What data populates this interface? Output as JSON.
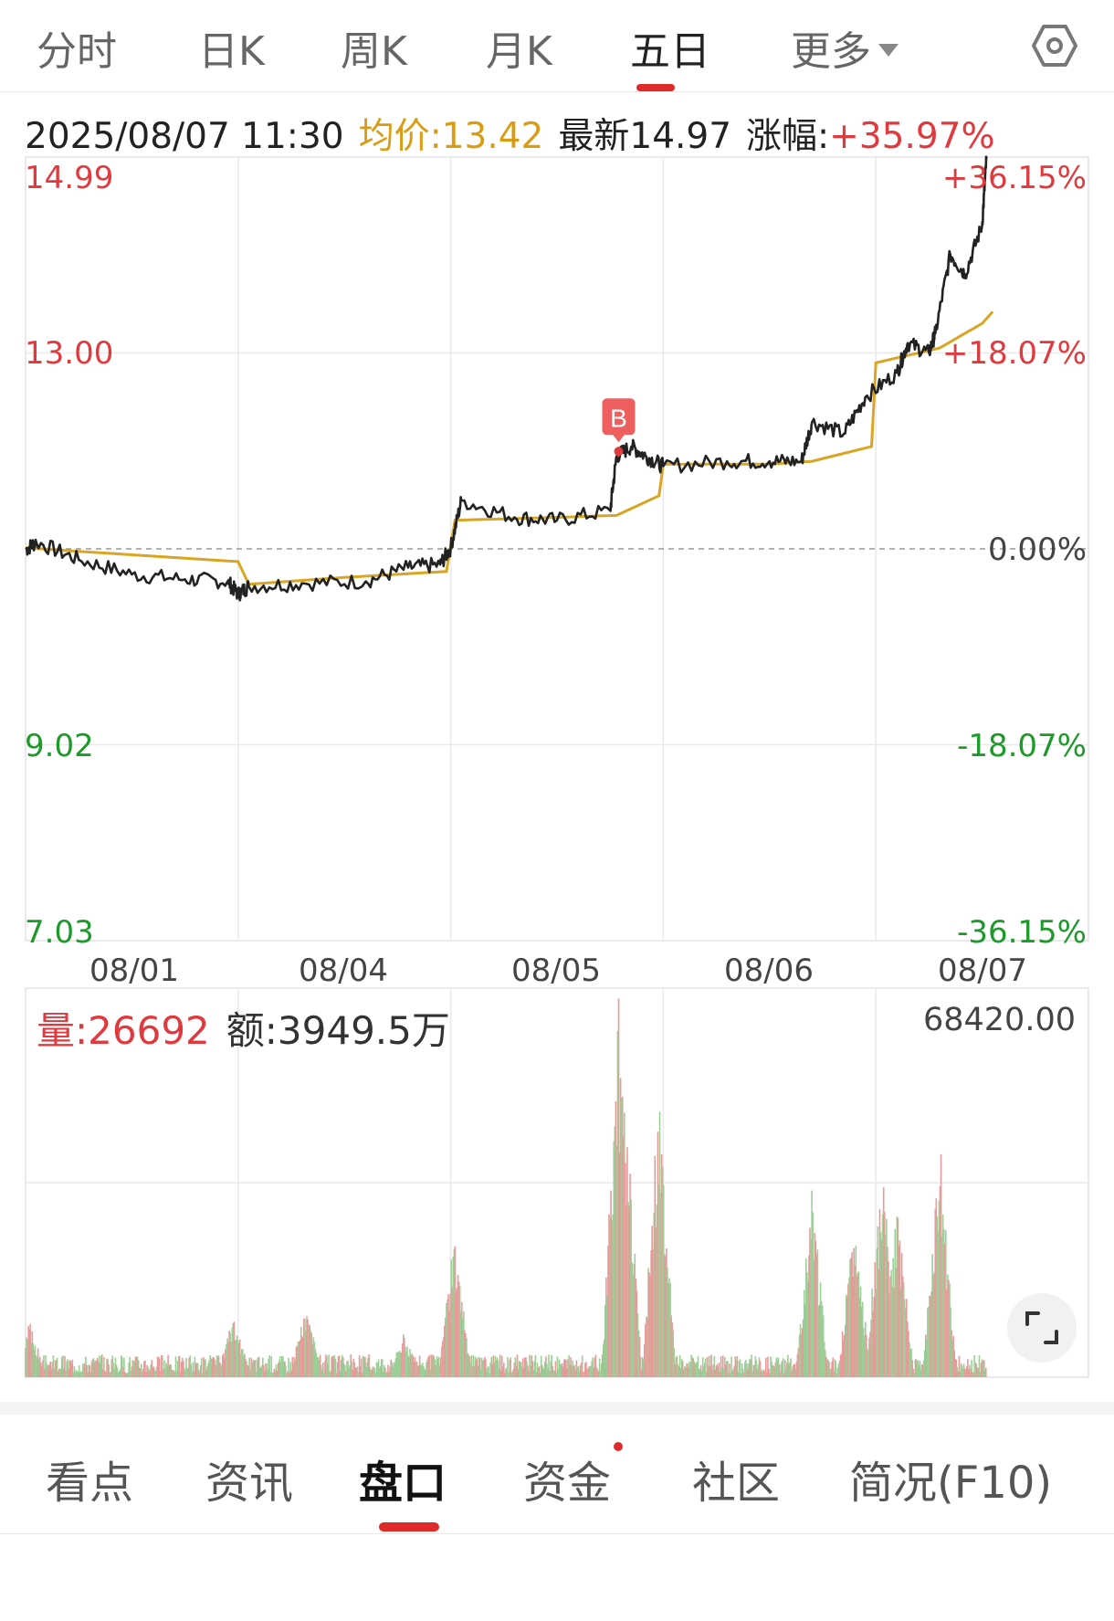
{
  "tabs": [
    "分时",
    "日K",
    "周K",
    "月K",
    "五日",
    "更多"
  ],
  "active_tab": "五日",
  "info": {
    "datetime": "2025/08/07 11:30",
    "avg": "均价:13.42",
    "latest": "最新14.97",
    "change_label": "涨幅:",
    "change_value": "+35.97%"
  },
  "marker_label": "B",
  "colors": {
    "up": "#e0393e",
    "down": "#1e9a2a",
    "avg_line": "#d9a523",
    "price_line": "#222222"
  },
  "volume": {
    "vol": "量:26692",
    "amount": "额:3949.5万",
    "max": "68420.00"
  },
  "bottom_tabs": [
    "看点",
    "资讯",
    "盘口",
    "资金",
    "社区",
    "简况(F10)"
  ],
  "active_bottom_tab": "盘口",
  "chart_data": {
    "type": "line",
    "title": "",
    "x_labels": [
      "08/01",
      "08/04",
      "08/05",
      "08/06",
      "08/07"
    ],
    "y_ticks": [
      "14.99",
      "13.00",
      "9.02",
      "7.03"
    ],
    "pct_ticks": [
      "+36.15%",
      "+18.07%",
      "0.00%",
      "-18.07%",
      "-36.15%"
    ],
    "reference_price": 11.01,
    "ylim": [
      7.03,
      14.99
    ],
    "series": [
      {
        "name": "最新",
        "x": [
          0,
          0.05,
          0.25,
          0.5,
          0.75,
          0.95,
          1.0,
          1.05,
          1.3,
          1.6,
          1.8,
          1.95,
          2.0,
          2.05,
          2.3,
          2.5,
          2.75,
          2.78,
          2.85,
          2.92,
          3.0,
          3.3,
          3.5,
          3.65,
          3.7,
          3.85,
          3.95,
          4.1,
          4.15,
          4.25,
          4.28,
          4.35,
          4.42,
          4.5,
          4.52
        ],
        "values": [
          11.0,
          11.08,
          10.9,
          10.75,
          10.7,
          10.68,
          10.55,
          10.63,
          10.66,
          10.68,
          10.82,
          10.85,
          11.02,
          11.5,
          11.33,
          11.3,
          11.4,
          11.95,
          12.05,
          11.95,
          11.85,
          11.9,
          11.9,
          11.9,
          12.3,
          12.18,
          12.55,
          12.8,
          13.1,
          13.0,
          13.2,
          14.0,
          13.8,
          14.3,
          14.97
        ]
      },
      {
        "name": "均价",
        "x": [
          0,
          0.5,
          1.0,
          1.05,
          1.5,
          1.98,
          2.02,
          2.5,
          2.78,
          2.98,
          3.0,
          3.5,
          3.7,
          3.98,
          4.0,
          4.3,
          4.5,
          4.55
        ],
        "values": [
          11.02,
          10.95,
          10.88,
          10.65,
          10.72,
          10.78,
          11.3,
          11.33,
          11.35,
          11.55,
          11.87,
          11.87,
          11.9,
          12.05,
          12.9,
          13.05,
          13.3,
          13.42
        ]
      }
    ],
    "ylabel": "",
    "xlabel": ""
  }
}
